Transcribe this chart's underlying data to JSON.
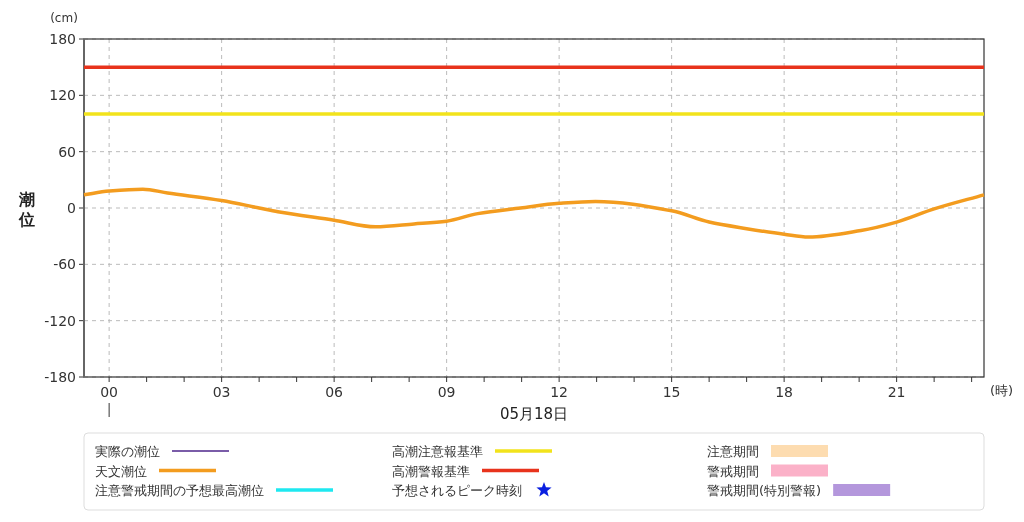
{
  "chart_data": {
    "type": "line",
    "ylabel": "潮位",
    "xlabel": "(時)",
    "annotations": [
      "(cm)",
      "05月18日"
    ],
    "xlim": [
      -0.67,
      23.33
    ],
    "ylim": [
      -180,
      180
    ],
    "xticks": [
      {
        "value": 0,
        "label": "00"
      },
      {
        "value": 1,
        "label": null
      },
      {
        "value": 2,
        "label": null
      },
      {
        "value": 3,
        "label": "03"
      },
      {
        "value": 4,
        "label": null
      },
      {
        "value": 5,
        "label": null
      },
      {
        "value": 6,
        "label": "06"
      },
      {
        "value": 7,
        "label": null
      },
      {
        "value": 8,
        "label": null
      },
      {
        "value": 9,
        "label": "09"
      },
      {
        "value": 10,
        "label": null
      },
      {
        "value": 11,
        "label": null
      },
      {
        "value": 12,
        "label": "12"
      },
      {
        "value": 13,
        "label": null
      },
      {
        "value": 14,
        "label": null
      },
      {
        "value": 15,
        "label": "15"
      },
      {
        "value": 16,
        "label": null
      },
      {
        "value": 17,
        "label": null
      },
      {
        "value": 18,
        "label": "18"
      },
      {
        "value": 19,
        "label": null
      },
      {
        "value": 20,
        "label": null
      },
      {
        "value": 21,
        "label": "21"
      },
      {
        "value": 22,
        "label": null
      },
      {
        "value": 23,
        "label": null
      }
    ],
    "yticks": [
      -180,
      -120,
      -60,
      0,
      60,
      120,
      180
    ],
    "grid": true,
    "legend": "bottom",
    "line_style": "solid",
    "series": [
      {
        "name": "実際の潮位",
        "color": "#7a5ca8",
        "marker": "none"
      },
      {
        "name": "天文潮位",
        "color": "#f39c1f",
        "marker": "none",
        "x": [
          -0.67,
          0,
          0.9,
          1.56,
          3,
          4,
          4.5,
          6,
          7.1,
          8.13,
          9,
          9.83,
          10.97,
          12,
          12.97,
          15,
          16,
          17,
          18,
          18.65,
          20.05,
          21,
          22,
          23.33
        ],
        "values": [
          14,
          18,
          20,
          16,
          8,
          0,
          -4,
          -13,
          -20,
          -17,
          -14,
          -6,
          0,
          5,
          7,
          -3,
          -15,
          -22,
          -28,
          -31,
          -24,
          -15,
          -1,
          14
        ]
      },
      {
        "name": "注意警戒期間の予想最高潮位",
        "color": "#1ee8f0",
        "marker": "none"
      },
      {
        "name": "高潮注意報基準",
        "color": "#f2e31b",
        "marker": "none",
        "x": [
          -0.67,
          23.33
        ],
        "values": [
          100,
          100
        ]
      },
      {
        "name": "高潮警報基準",
        "color": "#e8331c",
        "marker": "none",
        "x": [
          -0.67,
          23.33
        ],
        "values": [
          150,
          150
        ]
      },
      {
        "name": "予想されるピーク時刻",
        "type": "scatter",
        "color": "#0a1fe0",
        "marker": "star"
      },
      {
        "name": "注意期間",
        "type": "area",
        "color": "#fddcb0"
      },
      {
        "name": "警戒期間",
        "type": "area",
        "color": "#fbb1c8"
      },
      {
        "name": "警戒期間(特別警報)",
        "type": "area",
        "color": "#b497dc"
      }
    ]
  }
}
